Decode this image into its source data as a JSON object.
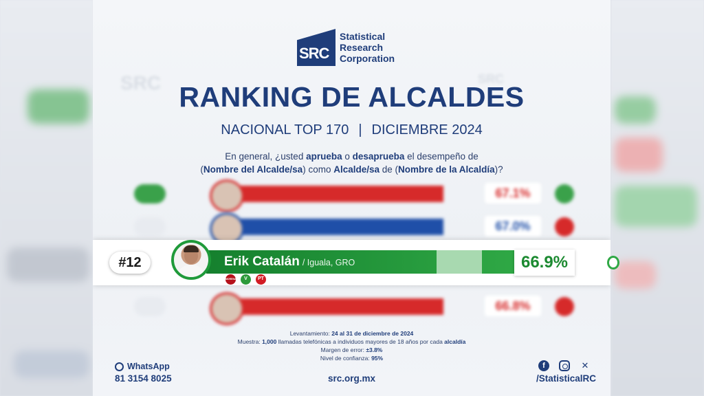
{
  "logo": {
    "mark": "SRC",
    "line1": "Statistical",
    "line2": "Research",
    "line3": "Corporation"
  },
  "title": "RANKING DE ALCALDES",
  "subtitle": {
    "left": "NACIONAL TOP 170",
    "separator": "|",
    "right": "DICIEMBRE 2024"
  },
  "question": {
    "p1": "En general, ¿usted ",
    "b1": "aprueba",
    "p2": " o ",
    "b2": "desaprueba",
    "p3": " el desempeño de",
    "p4": "(",
    "b3": "Nombre del Alcalde/sa",
    "p5": ") como ",
    "b4": "Alcalde/sa",
    "p6": " de (",
    "b5": "Nombre de la Alcaldía",
    "p7": ")?"
  },
  "highlight": {
    "rank": "#12",
    "name": "Erik Catalán",
    "place": "/ Iguala, GRO",
    "percent": "66.9%",
    "approval": 0.669,
    "parties": [
      "MORENA",
      "V",
      "PT"
    ],
    "bar_color": "#2fa845"
  },
  "blurred_rows": [
    {
      "percent": "67.1%",
      "bar_color": "#d62a2a",
      "rank_color": "#3aa14a",
      "dot_color": "#3aa14a"
    },
    {
      "percent": "67.0%",
      "bar_color": "#1f4fa8",
      "rank_color": "#e8ebf0",
      "dot_color": "#d62a2a"
    },
    {
      "percent": "66.8%",
      "bar_color": "#d62a2a",
      "rank_color": "#e8ebf0",
      "dot_color": "#d62a2a"
    }
  ],
  "methodology": {
    "l1_label": "Levantamiento: ",
    "l1_value": "24 al 31 de diciembre de 2024",
    "l2_label": "Muestra: ",
    "l2_value_a": "1,000",
    "l2_text": " llamadas telefónicas a individuos mayores de 18 años por cada ",
    "l2_value_b": "alcaldía",
    "l3_label": "Margen de error: ",
    "l3_value": "±3.8%",
    "l4_label": "Nivel de confianza: ",
    "l4_value": "95%"
  },
  "footer": {
    "whatsapp_label": "WhatsApp",
    "whatsapp_number": "81 3154 8025",
    "website": "src.org.mx",
    "social_handle": "/StatisticalRC",
    "icons": [
      "facebook-icon",
      "instagram-icon",
      "x-icon"
    ]
  }
}
